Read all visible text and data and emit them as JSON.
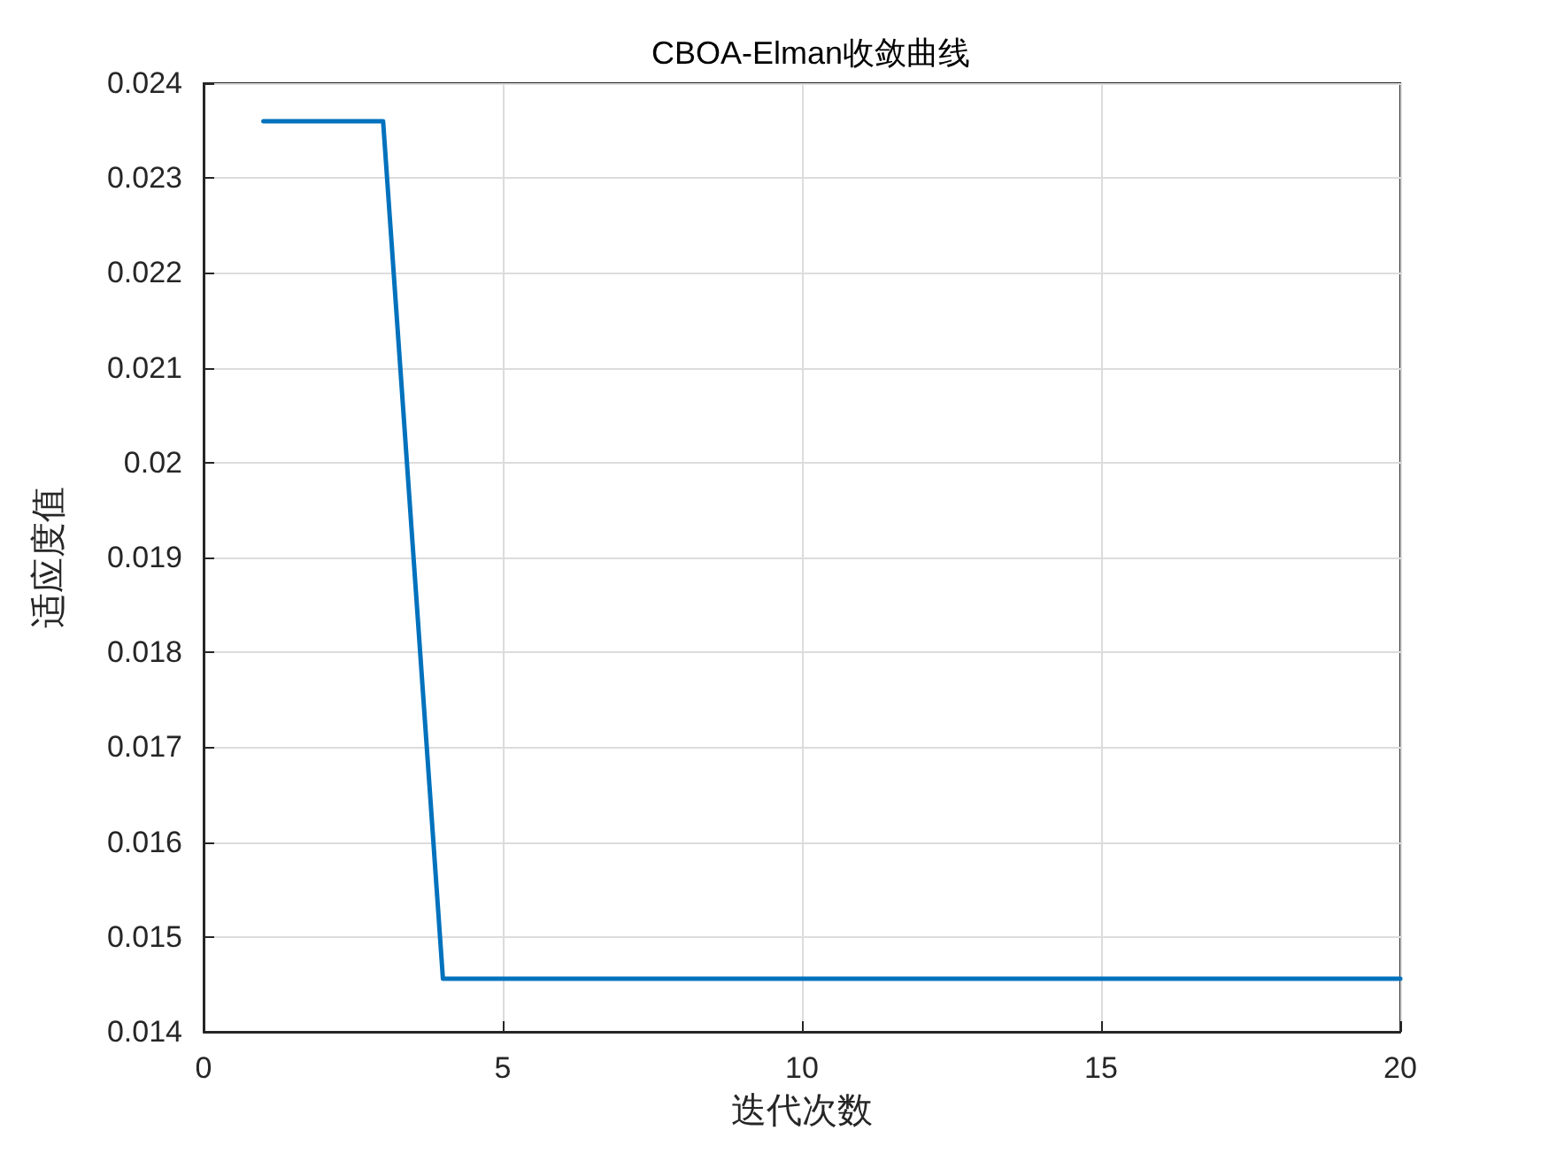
{
  "chart_data": {
    "type": "line",
    "title": "CBOA-Elman收敛曲线",
    "xlabel": "迭代次数",
    "ylabel": "适应度值",
    "x": [
      1,
      2,
      3,
      4,
      5,
      6,
      7,
      8,
      9,
      10,
      11,
      12,
      13,
      14,
      15,
      16,
      17,
      18,
      19,
      20
    ],
    "series": [
      {
        "color": "#0072bd",
        "values": [
          0.0236,
          0.0236,
          0.0236,
          0.01456,
          0.01456,
          0.01456,
          0.01456,
          0.01456,
          0.01456,
          0.01456,
          0.01456,
          0.01456,
          0.01456,
          0.01456,
          0.01456,
          0.01456,
          0.01456,
          0.01456,
          0.01456,
          0.01456
        ]
      }
    ],
    "xlim": [
      0,
      20
    ],
    "xticks": [
      0,
      5,
      10,
      15,
      20
    ],
    "ylim": [
      0.014,
      0.024
    ],
    "yticks": [
      0.014,
      0.015,
      0.016,
      0.017,
      0.018,
      0.019,
      0.02,
      0.021,
      0.022,
      0.023,
      0.024
    ],
    "grid": true,
    "marker": "none",
    "line_style": "solid"
  }
}
